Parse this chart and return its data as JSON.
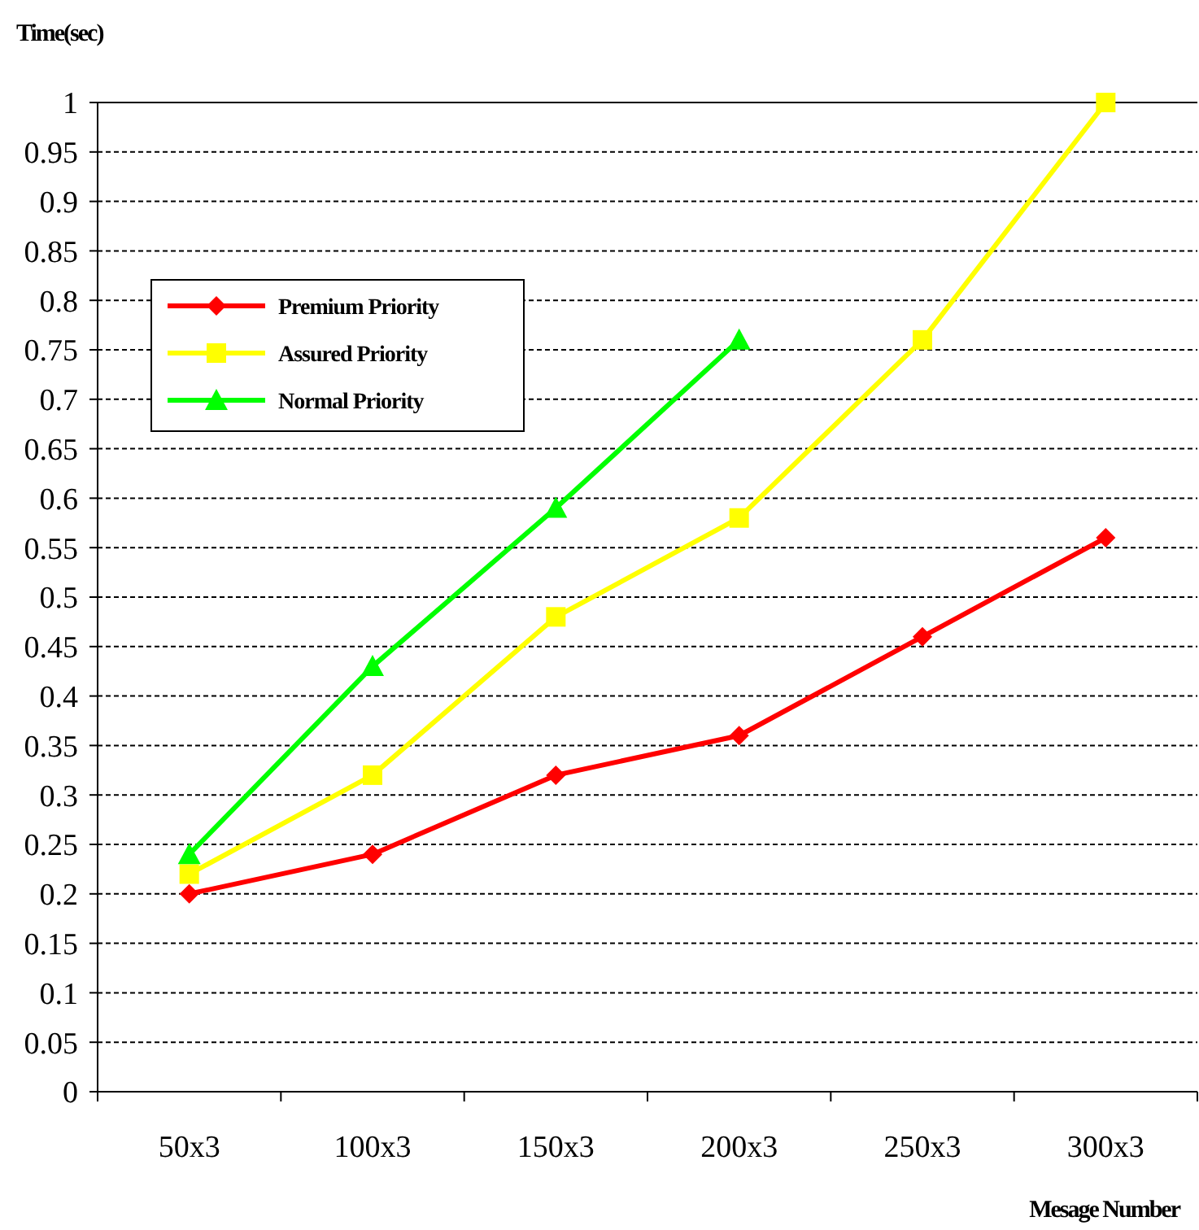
{
  "chart_data": {
    "type": "line",
    "ylabel": "Time(sec)",
    "xlabel": "Mesage Number",
    "categories": [
      "50x3",
      "100x3",
      "150x3",
      "200x3",
      "250x3",
      "300x3"
    ],
    "series": [
      {
        "name": "Premium Priority",
        "color": "#ff0000",
        "marker": "diamond",
        "values": [
          0.2,
          0.24,
          0.32,
          0.36,
          0.46,
          0.56
        ]
      },
      {
        "name": "Assured Priority",
        "color": "#ffff00",
        "marker": "square",
        "values": [
          0.22,
          0.32,
          0.48,
          0.58,
          0.76,
          1.0
        ]
      },
      {
        "name": "Normal Priority",
        "color": "#00ff00",
        "marker": "triangle",
        "values": [
          0.24,
          0.43,
          0.59,
          0.76,
          null,
          null
        ]
      }
    ],
    "ylim": [
      0,
      1
    ],
    "yticks": [
      0,
      0.05,
      0.1,
      0.15,
      0.2,
      0.25,
      0.3,
      0.35,
      0.4,
      0.45,
      0.5,
      0.55,
      0.6,
      0.65,
      0.7,
      0.75,
      0.8,
      0.85,
      0.9,
      0.95,
      1
    ],
    "grid": "y",
    "legend": "top left"
  }
}
